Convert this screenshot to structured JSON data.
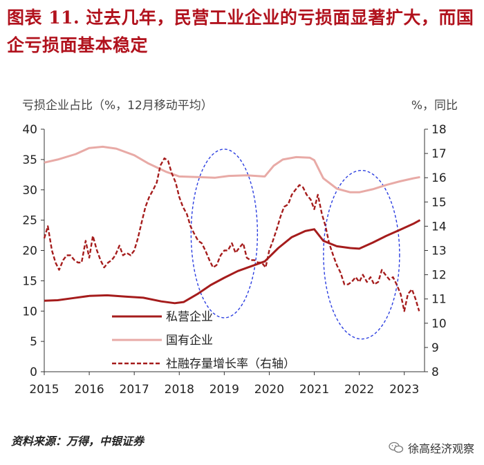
{
  "title": "图表 11. 过去几年，民营工业企业的亏损面显著扩大，而国企亏损面基本稳定",
  "left_unit": "亏损企业占比（%，12月移动平均）",
  "right_unit": "%，同比",
  "source": "资料来源：万得，中银证券",
  "watermark": "徐高经济观察",
  "icon": "wechat-icon",
  "chart_data": {
    "type": "line",
    "x_ticks": [
      "2015",
      "2016",
      "2017",
      "2018",
      "2019",
      "2020",
      "2021",
      "2022",
      "2023"
    ],
    "xlim": [
      2015.0,
      2023.45
    ],
    "ylim_left": [
      0,
      40
    ],
    "yticks_left": [
      "0",
      "5",
      "10",
      "15",
      "20",
      "25",
      "30",
      "35",
      "40"
    ],
    "ylim_right": [
      8,
      18
    ],
    "yticks_right": [
      "8",
      "9",
      "10",
      "11",
      "12",
      "13",
      "14",
      "15",
      "16",
      "17",
      "18"
    ],
    "legend_position": "bottom-center",
    "series": [
      {
        "name": "私营企业",
        "axis": "left",
        "color": "#a51c1c",
        "style": "solid",
        "x": [
          2015.0,
          2015.3,
          2015.6,
          2016.0,
          2016.4,
          2016.8,
          2017.2,
          2017.6,
          2017.9,
          2018.1,
          2018.4,
          2018.7,
          2019.0,
          2019.3,
          2019.6,
          2019.9,
          2020.2,
          2020.5,
          2020.8,
          2021.0,
          2021.2,
          2021.5,
          2021.8,
          2022.0,
          2022.3,
          2022.6,
          2022.9,
          2023.2,
          2023.35
        ],
        "values": [
          11.7,
          11.8,
          12.1,
          12.5,
          12.6,
          12.4,
          12.2,
          11.6,
          11.3,
          11.5,
          12.8,
          14.3,
          15.5,
          16.6,
          17.4,
          18.2,
          20.4,
          22.2,
          23.2,
          23.5,
          21.6,
          20.7,
          20.4,
          20.3,
          21.3,
          22.4,
          23.4,
          24.4,
          25.0
        ]
      },
      {
        "name": "国有企业",
        "axis": "left",
        "color": "#e8aaa6",
        "style": "solid",
        "x": [
          2015.0,
          2015.3,
          2015.7,
          2016.0,
          2016.3,
          2016.6,
          2017.0,
          2017.3,
          2017.7,
          2018.0,
          2018.4,
          2018.8,
          2019.1,
          2019.5,
          2019.9,
          2020.1,
          2020.3,
          2020.6,
          2020.9,
          2021.0,
          2021.2,
          2021.5,
          2021.8,
          2022.0,
          2022.3,
          2022.6,
          2022.9,
          2023.2,
          2023.35
        ],
        "values": [
          34.5,
          35.0,
          35.9,
          36.9,
          37.1,
          36.8,
          35.7,
          34.4,
          33.0,
          32.2,
          32.1,
          32.0,
          32.3,
          32.4,
          32.2,
          34.0,
          35.0,
          35.4,
          35.3,
          34.9,
          31.9,
          30.2,
          29.6,
          29.6,
          30.1,
          30.8,
          31.4,
          31.9,
          32.1
        ]
      },
      {
        "name": "社融存量增长率（右轴）",
        "axis": "right",
        "color": "#a51c1c",
        "style": "dashed",
        "x": [
          2015.0,
          2015.08,
          2015.17,
          2015.25,
          2015.33,
          2015.42,
          2015.5,
          2015.58,
          2015.67,
          2015.75,
          2015.83,
          2015.92,
          2016.0,
          2016.08,
          2016.17,
          2016.25,
          2016.33,
          2016.42,
          2016.5,
          2016.58,
          2016.67,
          2016.75,
          2016.83,
          2016.92,
          2017.0,
          2017.08,
          2017.17,
          2017.25,
          2017.33,
          2017.42,
          2017.5,
          2017.58,
          2017.67,
          2017.75,
          2017.83,
          2017.92,
          2018.0,
          2018.08,
          2018.17,
          2018.25,
          2018.33,
          2018.42,
          2018.5,
          2018.58,
          2018.67,
          2018.75,
          2018.83,
          2018.92,
          2019.0,
          2019.08,
          2019.17,
          2019.25,
          2019.33,
          2019.42,
          2019.5,
          2019.58,
          2019.67,
          2019.75,
          2019.83,
          2019.92,
          2020.0,
          2020.08,
          2020.17,
          2020.25,
          2020.33,
          2020.42,
          2020.5,
          2020.58,
          2020.67,
          2020.75,
          2020.83,
          2020.92,
          2021.0,
          2021.08,
          2021.17,
          2021.25,
          2021.33,
          2021.42,
          2021.5,
          2021.58,
          2021.67,
          2021.75,
          2021.83,
          2021.92,
          2022.0,
          2022.08,
          2022.17,
          2022.25,
          2022.33,
          2022.42,
          2022.5,
          2022.58,
          2022.67,
          2022.75,
          2022.83,
          2022.92,
          2023.0,
          2023.08,
          2023.17,
          2023.25,
          2023.33
        ],
        "values": [
          13.5,
          14.0,
          13.0,
          12.5,
          12.2,
          12.6,
          12.8,
          12.8,
          12.6,
          12.5,
          12.5,
          13.4,
          12.7,
          13.6,
          13.0,
          12.6,
          12.3,
          12.5,
          12.6,
          12.8,
          13.2,
          12.8,
          12.9,
          12.8,
          13.0,
          13.5,
          14.2,
          14.8,
          15.2,
          15.5,
          15.8,
          16.5,
          16.8,
          16.7,
          16.2,
          15.8,
          15.2,
          14.8,
          14.5,
          14.0,
          13.7,
          13.4,
          13.3,
          13.0,
          12.6,
          12.3,
          12.4,
          12.8,
          13.0,
          13.0,
          13.3,
          12.9,
          13.1,
          13.3,
          12.7,
          12.6,
          12.6,
          12.5,
          12.5,
          12.3,
          13.0,
          13.4,
          13.9,
          14.4,
          14.8,
          14.9,
          15.3,
          15.5,
          15.7,
          15.6,
          15.3,
          15.1,
          14.7,
          15.3,
          14.5,
          14.0,
          13.3,
          12.8,
          12.4,
          12.1,
          11.6,
          11.6,
          11.7,
          11.9,
          11.7,
          12.0,
          11.7,
          11.9,
          11.6,
          11.7,
          12.2,
          12.0,
          11.8,
          11.9,
          11.6,
          11.2,
          10.5,
          11.2,
          11.4,
          11.0,
          10.5
        ]
      }
    ]
  }
}
